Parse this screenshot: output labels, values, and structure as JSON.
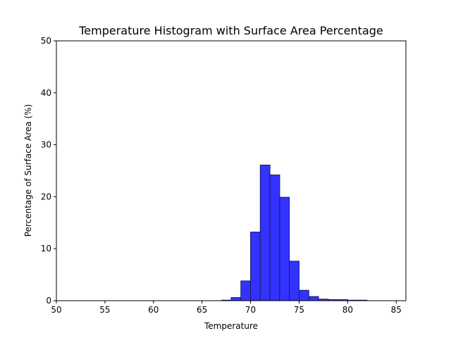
{
  "chart_data": {
    "type": "bar",
    "title": "Temperature Histogram with Surface Area Percentage",
    "xlabel": "Temperature",
    "ylabel": "Percentage of Surface Area (%)",
    "xlim": [
      50,
      86
    ],
    "ylim": [
      0,
      50
    ],
    "xticks": [
      50,
      55,
      60,
      65,
      70,
      75,
      80,
      85
    ],
    "yticks": [
      0,
      10,
      20,
      30,
      40,
      50
    ],
    "grid": false,
    "bar_color": "#3333ff",
    "bar_edge_color": "#1a1a66",
    "bins": [
      {
        "x0": 67.0,
        "x1": 68.0,
        "value": 0.1
      },
      {
        "x0": 68.0,
        "x1": 69.0,
        "value": 0.6
      },
      {
        "x0": 69.0,
        "x1": 70.0,
        "value": 3.8
      },
      {
        "x0": 70.0,
        "x1": 71.0,
        "value": 13.2
      },
      {
        "x0": 71.0,
        "x1": 72.0,
        "value": 26.1
      },
      {
        "x0": 72.0,
        "x1": 73.0,
        "value": 24.2
      },
      {
        "x0": 73.0,
        "x1": 74.0,
        "value": 19.9
      },
      {
        "x0": 74.0,
        "x1": 75.0,
        "value": 7.6
      },
      {
        "x0": 75.0,
        "x1": 76.0,
        "value": 2.0
      },
      {
        "x0": 76.0,
        "x1": 77.0,
        "value": 0.8
      },
      {
        "x0": 77.0,
        "x1": 78.0,
        "value": 0.3
      },
      {
        "x0": 78.0,
        "x1": 79.0,
        "value": 0.2
      },
      {
        "x0": 79.0,
        "x1": 80.0,
        "value": 0.2
      },
      {
        "x0": 80.0,
        "x1": 81.0,
        "value": 0.1
      },
      {
        "x0": 81.0,
        "x1": 82.0,
        "value": 0.1
      }
    ]
  }
}
